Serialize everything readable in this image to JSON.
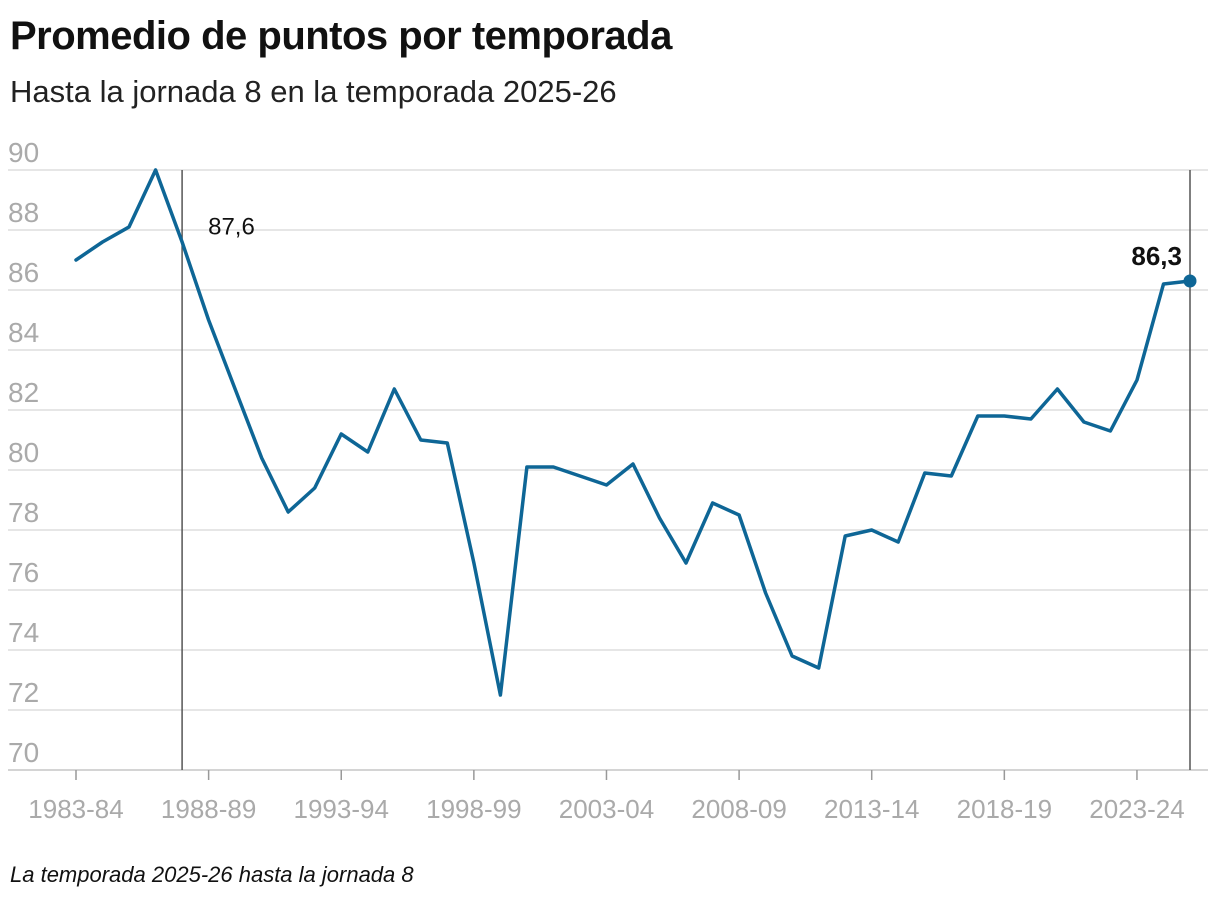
{
  "chart_data": {
    "type": "line",
    "title": "Promedio de puntos por temporada",
    "subtitle": "Hasta la jornada 8 en la temporada 2025-26",
    "note": "La temporada 2025-26 hasta la jornada 8",
    "xlabel": "",
    "ylabel": "",
    "ylim": [
      70,
      90
    ],
    "yticks": [
      90,
      88,
      86,
      84,
      82,
      80,
      78,
      76,
      74,
      72,
      70
    ],
    "grid": true,
    "xticks": [
      "1983-84",
      "1988-89",
      "1993-94",
      "1998-99",
      "2003-04",
      "2008-09",
      "2013-14",
      "2018-19",
      "2023-24"
    ],
    "x": [
      "1983-84",
      "1984-85",
      "1985-86",
      "1986-87",
      "1987-88",
      "1988-89",
      "1989-90",
      "1990-91",
      "1991-92",
      "1992-93",
      "1993-94",
      "1994-95",
      "1995-96",
      "1996-97",
      "1997-98",
      "1998-99",
      "1999-00",
      "2000-01",
      "2001-02",
      "2002-03",
      "2003-04",
      "2004-05",
      "2005-06",
      "2006-07",
      "2007-08",
      "2008-09",
      "2009-10",
      "2010-11",
      "2011-12",
      "2012-13",
      "2013-14",
      "2014-15",
      "2015-16",
      "2016-17",
      "2017-18",
      "2018-19",
      "2019-20",
      "2020-21",
      "2021-22",
      "2022-23",
      "2023-24",
      "2024-25",
      "2025-26"
    ],
    "series": [
      {
        "values": [
          87.0,
          87.6,
          88.1,
          90.0,
          87.6,
          85.0,
          82.7,
          80.4,
          78.6,
          79.4,
          81.2,
          80.6,
          82.7,
          81.0,
          80.9,
          76.9,
          72.5,
          80.1,
          80.1,
          79.8,
          79.5,
          80.2,
          78.4,
          76.9,
          78.9,
          78.5,
          75.9,
          73.8,
          73.4,
          77.8,
          78.0,
          77.6,
          79.9,
          79.8,
          81.8,
          81.8,
          81.7,
          82.7,
          81.6,
          81.3,
          83.0,
          86.2,
          86.3
        ],
        "color": "#0e6696"
      }
    ],
    "annotations": [
      {
        "text": "87,6",
        "x": "1987-88",
        "y": 87.6
      },
      {
        "text": "86,3",
        "x": "2025-26",
        "y": 86.3
      }
    ],
    "colors": {
      "line": "#0e6696",
      "grid": "#dddddd",
      "marker_line": "#555555",
      "tick_text": "#aaaaaa"
    }
  }
}
